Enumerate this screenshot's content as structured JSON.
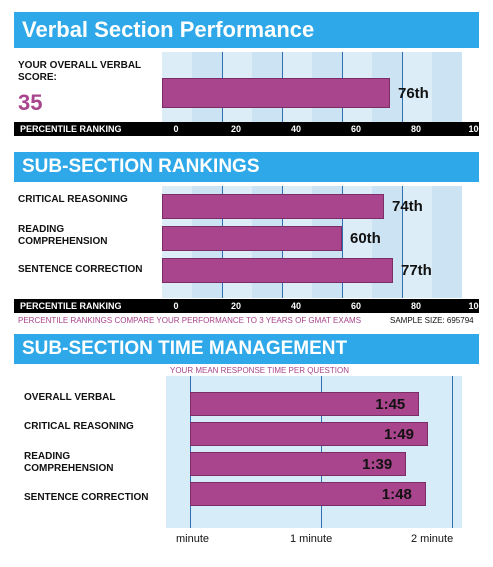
{
  "verbal": {
    "title": "Verbal Section Performance",
    "score_label": "YOUR OVERALL VERBAL SCORE:",
    "score": "35",
    "percentile_value": 76,
    "percentile_text": "76th",
    "axis_title": "PERCENTILE RANKING",
    "ticks": [
      "0",
      "20",
      "40",
      "60",
      "80",
      "100"
    ]
  },
  "subsection_rankings": {
    "title": "SUB-SECTION RANKINGS",
    "rows": [
      {
        "label": "CRITICAL REASONING",
        "value": 74,
        "text": "74th"
      },
      {
        "label": "READING COMPREHENSION",
        "value": 60,
        "text": "60th"
      },
      {
        "label": "SENTENCE CORRECTION",
        "value": 77,
        "text": "77th"
      }
    ],
    "axis_title": "PERCENTILE RANKING",
    "ticks": [
      "0",
      "20",
      "40",
      "60",
      "80",
      "100"
    ],
    "note": "PERCENTILE RANKINGS COMPARE YOUR PERFORMANCE TO 3 YEARS OF GMAT EXAMS",
    "sample_size": "SAMPLE SIZE: 695794"
  },
  "time_management": {
    "title": "SUB-SECTION TIME MANAGEMENT",
    "subtitle": "YOUR MEAN RESPONSE TIME PER QUESTION",
    "rows": [
      {
        "label": "OVERALL VERBAL",
        "value": 105,
        "text": "1:45"
      },
      {
        "label": "CRITICAL REASONING",
        "value": 109,
        "text": "1:49"
      },
      {
        "label": "READING COMPREHENSION",
        "value": 99,
        "text": "1:39"
      },
      {
        "label": "SENTENCE CORRECTION",
        "value": 108,
        "text": "1:48"
      }
    ],
    "ticks": [
      "minute",
      "1 minute",
      "2 minute"
    ],
    "tick_values": [
      0,
      60,
      120
    ]
  },
  "colors": {
    "banner": "#2ea8e8",
    "bar": "#a8458c",
    "plot_bg": "#dcedf8",
    "accent_text": "#a8458c"
  }
}
